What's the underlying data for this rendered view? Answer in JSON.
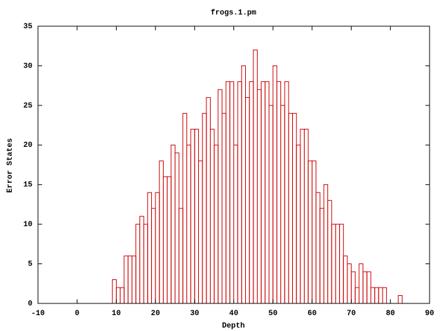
{
  "chart_data": {
    "type": "histogram",
    "title": "frogs.1.pm",
    "x_label": "Depth",
    "y_label": "Error States",
    "bins": [
      9,
      10,
      11,
      12,
      13,
      14,
      15,
      16,
      17,
      18,
      19,
      20,
      21,
      22,
      23,
      24,
      25,
      26,
      27,
      28,
      29,
      30,
      31,
      32,
      33,
      34,
      35,
      36,
      37,
      38,
      39,
      40,
      41,
      42,
      43,
      44,
      45,
      46,
      47,
      48,
      49,
      50,
      51,
      52,
      53,
      54,
      55,
      56,
      57,
      58,
      59,
      60,
      61,
      62,
      63,
      64,
      65,
      66,
      67,
      68,
      69,
      70,
      71,
      72,
      73,
      74,
      75,
      76,
      77,
      78,
      79,
      80,
      81,
      82,
      83
    ],
    "values": [
      3,
      2,
      2,
      6,
      6,
      6,
      10,
      11,
      10,
      14,
      12,
      14,
      18,
      16,
      16,
      20,
      19,
      12,
      24,
      20,
      22,
      22,
      18,
      24,
      26,
      22,
      20,
      27,
      24,
      28,
      28,
      20,
      28,
      30,
      26,
      28,
      32,
      27,
      28,
      28,
      25,
      30,
      28,
      25,
      28,
      24,
      24,
      20,
      22,
      22,
      18,
      18,
      14,
      12,
      15,
      13,
      10,
      10,
      10,
      6,
      5,
      4,
      2,
      5,
      4,
      4,
      2,
      2,
      2,
      2,
      0,
      0,
      0,
      1
    ],
    "color": "#cc0000",
    "xlim": [
      -10,
      90
    ],
    "xticks": [
      -10,
      0,
      10,
      20,
      30,
      40,
      50,
      60,
      70,
      80,
      90
    ],
    "ylim": [
      0,
      35
    ],
    "yticks": [
      0,
      5,
      10,
      15,
      20,
      25,
      30,
      35
    ]
  }
}
